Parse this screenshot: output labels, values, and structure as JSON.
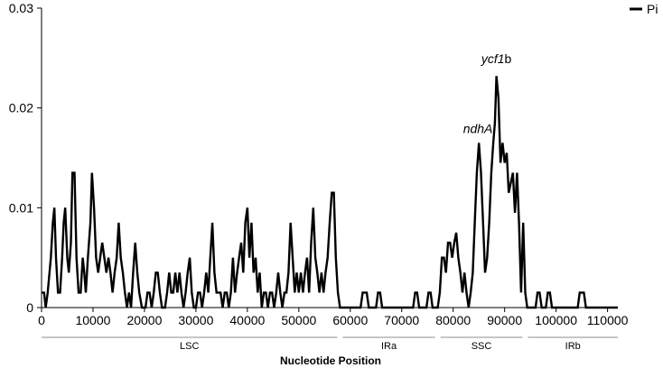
{
  "chart_data": {
    "type": "line",
    "title": "",
    "xlabel": "Nucleotide Position",
    "ylabel": "",
    "xlim": [
      0,
      112000
    ],
    "ylim": [
      0,
      0.03
    ],
    "grid": false,
    "legend_position": "top-right",
    "x_ticks": [
      0,
      10000,
      20000,
      30000,
      40000,
      50000,
      60000,
      70000,
      80000,
      90000,
      100000,
      110000
    ],
    "x_tick_labels": [
      "0",
      "10000",
      "20000",
      "30000",
      "40000",
      "50000",
      "60000",
      "70000",
      "80000",
      "90000",
      "100000",
      "110000"
    ],
    "y_ticks": [
      0,
      0.01,
      0.02,
      0.03
    ],
    "y_tick_labels": [
      "0",
      "0.01",
      "0.02",
      "0.03"
    ],
    "series": [
      {
        "name": "Pi",
        "color": "#000000",
        "points": [
          [
            0,
            0.0015
          ],
          [
            500,
            0.0015
          ],
          [
            800,
            0
          ],
          [
            1200,
            0.0015
          ],
          [
            1800,
            0.005
          ],
          [
            2200,
            0.0085
          ],
          [
            2500,
            0.01
          ],
          [
            2800,
            0.005
          ],
          [
            3200,
            0.0015
          ],
          [
            3600,
            0.0015
          ],
          [
            4000,
            0.005
          ],
          [
            4300,
            0.0085
          ],
          [
            4600,
            0.01
          ],
          [
            5000,
            0.005
          ],
          [
            5300,
            0.0035
          ],
          [
            5700,
            0.0065
          ],
          [
            6000,
            0.0135
          ],
          [
            6400,
            0.0135
          ],
          [
            6800,
            0.005
          ],
          [
            7200,
            0.0015
          ],
          [
            7600,
            0.0015
          ],
          [
            8000,
            0.005
          ],
          [
            8300,
            0.0035
          ],
          [
            8600,
            0.0015
          ],
          [
            9000,
            0.005
          ],
          [
            9500,
            0.0085
          ],
          [
            9800,
            0.0135
          ],
          [
            10200,
            0.01
          ],
          [
            10600,
            0.005
          ],
          [
            11000,
            0.0035
          ],
          [
            11400,
            0.005
          ],
          [
            11800,
            0.0065
          ],
          [
            12200,
            0.005
          ],
          [
            12600,
            0.0035
          ],
          [
            13000,
            0.005
          ],
          [
            13400,
            0.0035
          ],
          [
            13800,
            0.0015
          ],
          [
            14200,
            0.0035
          ],
          [
            14600,
            0.005
          ],
          [
            15000,
            0.0085
          ],
          [
            15400,
            0.005
          ],
          [
            15800,
            0.0035
          ],
          [
            16200,
            0.0015
          ],
          [
            16600,
            0
          ],
          [
            17000,
            0.0015
          ],
          [
            17400,
            0
          ],
          [
            17800,
            0.0035
          ],
          [
            18200,
            0.0065
          ],
          [
            18600,
            0.0035
          ],
          [
            19000,
            0.0015
          ],
          [
            19500,
            0
          ],
          [
            20200,
            0
          ],
          [
            20600,
            0.0015
          ],
          [
            21000,
            0.0015
          ],
          [
            21400,
            0
          ],
          [
            21800,
            0.0015
          ],
          [
            22200,
            0.0035
          ],
          [
            22600,
            0.0035
          ],
          [
            23000,
            0.0015
          ],
          [
            23400,
            0
          ],
          [
            24000,
            0
          ],
          [
            24400,
            0.0015
          ],
          [
            24800,
            0.0035
          ],
          [
            25200,
            0.0015
          ],
          [
            25600,
            0.0015
          ],
          [
            26000,
            0.0035
          ],
          [
            26400,
            0.0015
          ],
          [
            26800,
            0.0035
          ],
          [
            27200,
            0.0015
          ],
          [
            27600,
            0
          ],
          [
            28000,
            0.0015
          ],
          [
            28400,
            0.0035
          ],
          [
            28800,
            0.005
          ],
          [
            29200,
            0.0015
          ],
          [
            29600,
            0
          ],
          [
            30000,
            0
          ],
          [
            30400,
            0.0015
          ],
          [
            30800,
            0.0015
          ],
          [
            31200,
            0
          ],
          [
            31600,
            0.0015
          ],
          [
            32000,
            0.0035
          ],
          [
            32400,
            0.0015
          ],
          [
            32800,
            0.005
          ],
          [
            33200,
            0.0085
          ],
          [
            33600,
            0.0035
          ],
          [
            34000,
            0.0015
          ],
          [
            34400,
            0.0015
          ],
          [
            34800,
            0.0015
          ],
          [
            35200,
            0
          ],
          [
            35600,
            0.0015
          ],
          [
            36000,
            0.0015
          ],
          [
            36400,
            0
          ],
          [
            36800,
            0.0015
          ],
          [
            37200,
            0.005
          ],
          [
            37600,
            0.0015
          ],
          [
            38000,
            0.0035
          ],
          [
            38400,
            0.005
          ],
          [
            38800,
            0.0065
          ],
          [
            39200,
            0.0035
          ],
          [
            39600,
            0.0085
          ],
          [
            40000,
            0.01
          ],
          [
            40400,
            0.005
          ],
          [
            40800,
            0.0085
          ],
          [
            41200,
            0.0035
          ],
          [
            41600,
            0.005
          ],
          [
            42000,
            0.0015
          ],
          [
            42400,
            0.0035
          ],
          [
            42800,
            0
          ],
          [
            43200,
            0.0015
          ],
          [
            43600,
            0.0015
          ],
          [
            44000,
            0
          ],
          [
            44400,
            0.0015
          ],
          [
            44800,
            0.0015
          ],
          [
            45200,
            0
          ],
          [
            45600,
            0.0015
          ],
          [
            46000,
            0.0035
          ],
          [
            46400,
            0.0015
          ],
          [
            46800,
            0
          ],
          [
            47200,
            0.0015
          ],
          [
            47600,
            0.0015
          ],
          [
            48000,
            0.0035
          ],
          [
            48400,
            0.0085
          ],
          [
            48800,
            0.005
          ],
          [
            49200,
            0.0015
          ],
          [
            49600,
            0.0035
          ],
          [
            50000,
            0.0015
          ],
          [
            50400,
            0.0035
          ],
          [
            50800,
            0.0015
          ],
          [
            51200,
            0.0035
          ],
          [
            51600,
            0.005
          ],
          [
            52000,
            0.0015
          ],
          [
            52400,
            0.0065
          ],
          [
            52800,
            0.01
          ],
          [
            53200,
            0.005
          ],
          [
            53600,
            0.0035
          ],
          [
            54000,
            0.0015
          ],
          [
            54400,
            0.0035
          ],
          [
            54800,
            0.0015
          ],
          [
            55200,
            0.0035
          ],
          [
            55600,
            0.005
          ],
          [
            56000,
            0.0085
          ],
          [
            56400,
            0.0115
          ],
          [
            56800,
            0.0115
          ],
          [
            57200,
            0.005
          ],
          [
            57600,
            0.0015
          ],
          [
            58000,
            0
          ],
          [
            62000,
            0
          ],
          [
            62400,
            0.0015
          ],
          [
            63200,
            0.0015
          ],
          [
            63600,
            0
          ],
          [
            65000,
            0
          ],
          [
            65400,
            0.0015
          ],
          [
            65800,
            0.0015
          ],
          [
            66200,
            0
          ],
          [
            72200,
            0
          ],
          [
            72600,
            0.0015
          ],
          [
            73000,
            0.0015
          ],
          [
            73400,
            0
          ],
          [
            74800,
            0
          ],
          [
            75200,
            0.0015
          ],
          [
            75600,
            0.0015
          ],
          [
            76000,
            0
          ],
          [
            77000,
            0
          ],
          [
            77400,
            0.0015
          ],
          [
            77800,
            0.005
          ],
          [
            78200,
            0.005
          ],
          [
            78600,
            0.0035
          ],
          [
            79000,
            0.0065
          ],
          [
            79400,
            0.0065
          ],
          [
            79800,
            0.005
          ],
          [
            80200,
            0.0065
          ],
          [
            80600,
            0.0075
          ],
          [
            81000,
            0.005
          ],
          [
            81400,
            0.0035
          ],
          [
            81800,
            0.0015
          ],
          [
            82200,
            0.0035
          ],
          [
            82600,
            0.0015
          ],
          [
            83000,
            0
          ],
          [
            83400,
            0.0015
          ],
          [
            83800,
            0.0035
          ],
          [
            84200,
            0.0085
          ],
          [
            84600,
            0.0135
          ],
          [
            85000,
            0.0165
          ],
          [
            85400,
            0.0135
          ],
          [
            85800,
            0.0085
          ],
          [
            86200,
            0.0035
          ],
          [
            86600,
            0.005
          ],
          [
            87000,
            0.0085
          ],
          [
            87400,
            0.0135
          ],
          [
            87800,
            0.0165
          ],
          [
            88100,
            0.0185
          ],
          [
            88400,
            0.0232
          ],
          [
            88800,
            0.021
          ],
          [
            89200,
            0.0145
          ],
          [
            89600,
            0.0165
          ],
          [
            90000,
            0.0145
          ],
          [
            90400,
            0.0155
          ],
          [
            90800,
            0.0115
          ],
          [
            91200,
            0.0125
          ],
          [
            91600,
            0.0135
          ],
          [
            92000,
            0.0095
          ],
          [
            92400,
            0.0135
          ],
          [
            92800,
            0.0085
          ],
          [
            93200,
            0.0015
          ],
          [
            93600,
            0.0085
          ],
          [
            94000,
            0.0015
          ],
          [
            94400,
            0
          ],
          [
            96000,
            0
          ],
          [
            96400,
            0.0015
          ],
          [
            96800,
            0.0015
          ],
          [
            97200,
            0
          ],
          [
            98000,
            0
          ],
          [
            98400,
            0.0015
          ],
          [
            98800,
            0.0015
          ],
          [
            99200,
            0
          ],
          [
            104200,
            0
          ],
          [
            104600,
            0.0015
          ],
          [
            105400,
            0.0015
          ],
          [
            105800,
            0
          ],
          [
            112000,
            0
          ]
        ]
      }
    ],
    "annotations": [
      {
        "text_italic": "ycf1",
        "text_plain": "b",
        "x": 88400,
        "y": 0.0245
      },
      {
        "text_italic": "ndhA",
        "text_plain": "",
        "x": 84800,
        "y": 0.0175
      }
    ],
    "regions": [
      {
        "label": "LSC",
        "start": 0,
        "end": 58000
      },
      {
        "label": "IRa",
        "start": 58000,
        "end": 77000
      },
      {
        "label": "SSC",
        "start": 77000,
        "end": 94000
      },
      {
        "label": "IRb",
        "start": 94000,
        "end": 112000
      }
    ]
  }
}
